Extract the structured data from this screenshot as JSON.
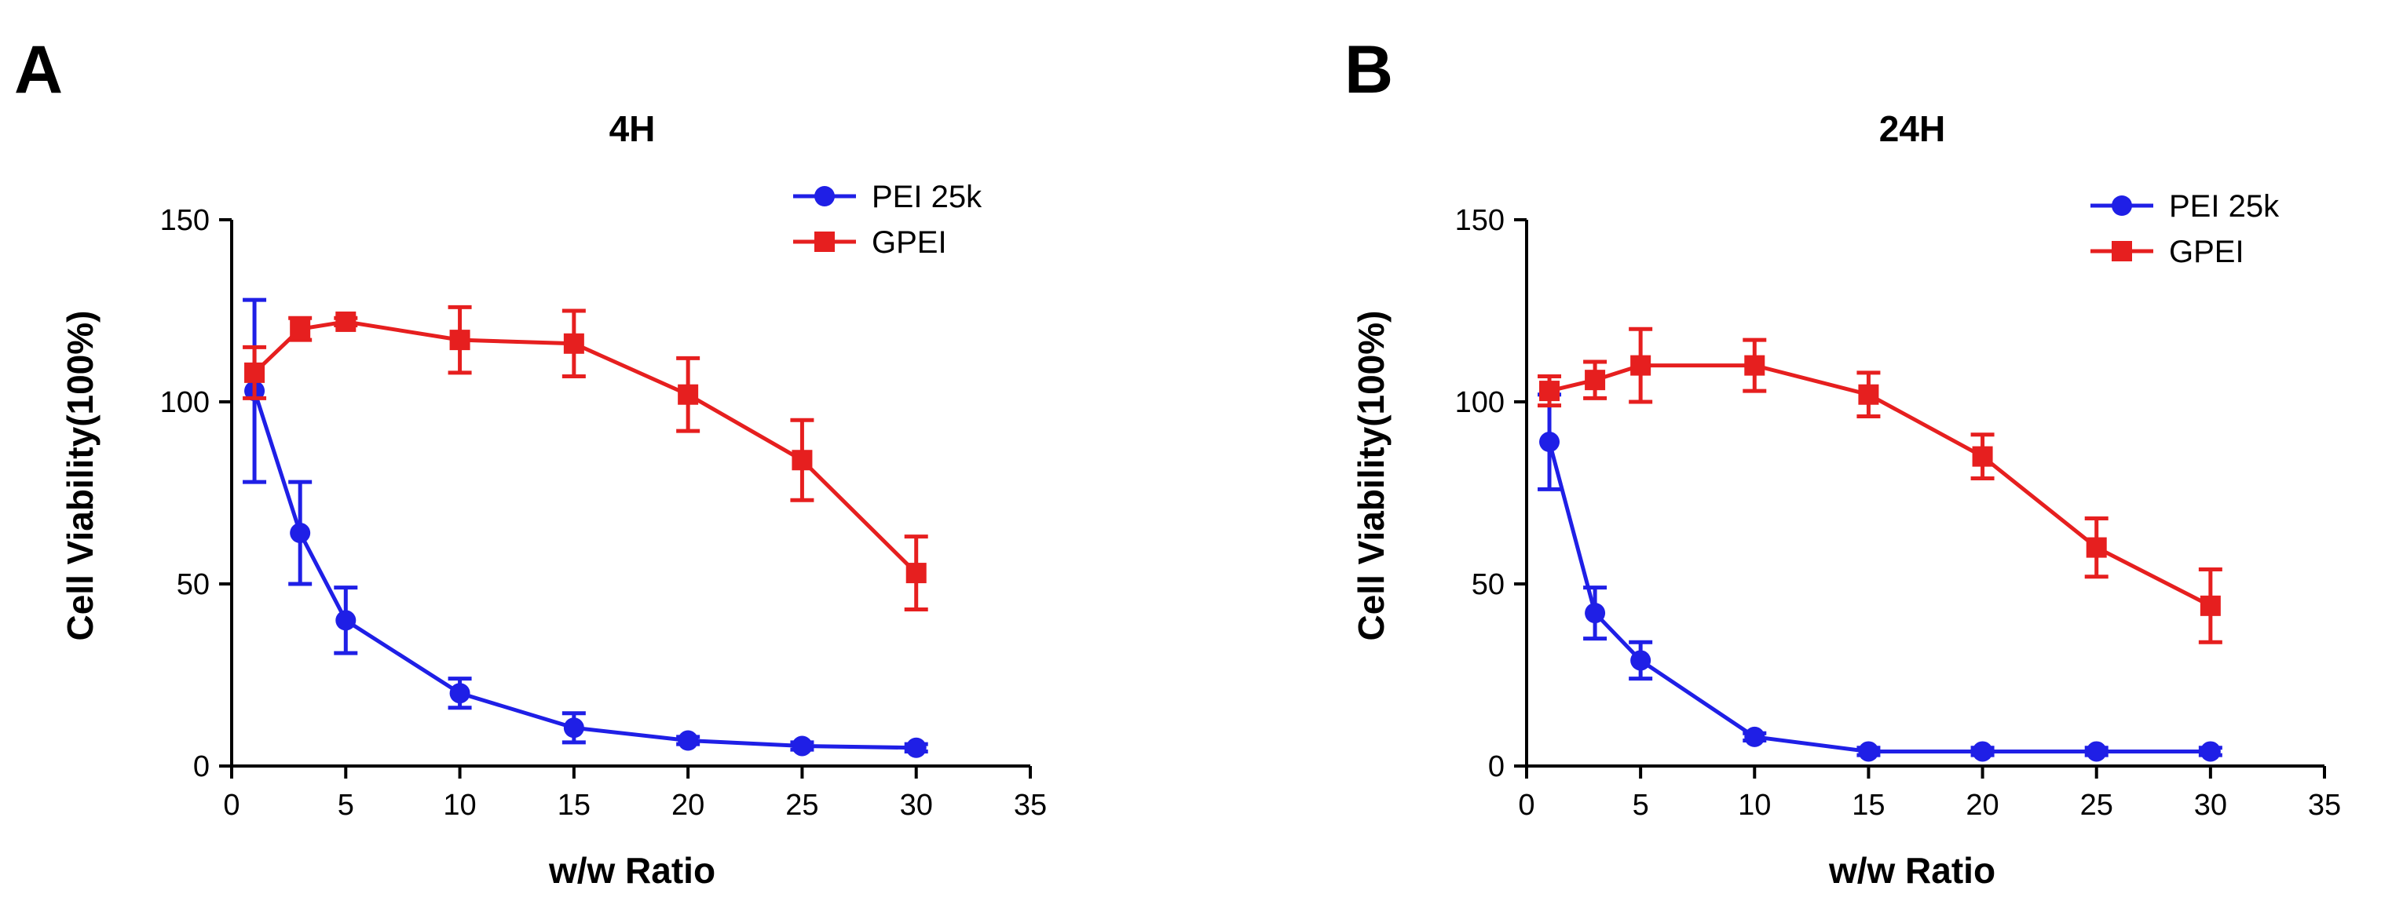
{
  "chart_data": [
    {
      "panel": "A",
      "type": "line",
      "title": "4H",
      "xlabel": "w/w Ratio",
      "ylabel": "Cell Viability(100%)",
      "xlim": [
        0,
        35
      ],
      "ylim": [
        0,
        150
      ],
      "xticks": [
        0,
        5,
        10,
        15,
        20,
        25,
        30,
        35
      ],
      "yticks": [
        0,
        50,
        100,
        150
      ],
      "legend": "top-right",
      "series": [
        {
          "name": "PEI 25k",
          "color": "#1f1fe6",
          "marker": "circle",
          "x": [
            1,
            3,
            5,
            10,
            15,
            20,
            25,
            30
          ],
          "y": [
            103,
            64,
            40,
            20,
            10.5,
            7,
            5.5,
            5
          ],
          "err": [
            25,
            14,
            9,
            4,
            4,
            1,
            1,
            1
          ]
        },
        {
          "name": "GPEI",
          "color": "#e61f1f",
          "marker": "square",
          "x": [
            1,
            3,
            5,
            10,
            15,
            20,
            25,
            30
          ],
          "y": [
            108,
            120,
            122,
            117,
            116,
            102,
            84,
            53
          ],
          "err": [
            7,
            3,
            1,
            9,
            9,
            10,
            11,
            10
          ]
        }
      ]
    },
    {
      "panel": "B",
      "type": "line",
      "title": "24H",
      "xlabel": "w/w Ratio",
      "ylabel": "Cell Viability(100%)",
      "xlim": [
        0,
        35
      ],
      "ylim": [
        0,
        150
      ],
      "xticks": [
        0,
        5,
        10,
        15,
        20,
        25,
        30,
        35
      ],
      "yticks": [
        0,
        50,
        100,
        150
      ],
      "legend": "top-right",
      "series": [
        {
          "name": "PEI 25k",
          "color": "#1f1fe6",
          "marker": "circle",
          "x": [
            1,
            3,
            5,
            10,
            15,
            20,
            25,
            30
          ],
          "y": [
            89,
            42,
            29,
            8,
            4,
            4,
            4,
            4
          ],
          "err": [
            13,
            7,
            5,
            1,
            1,
            1,
            1,
            1
          ]
        },
        {
          "name": "GPEI",
          "color": "#e61f1f",
          "marker": "square",
          "x": [
            1,
            3,
            5,
            10,
            15,
            20,
            25,
            30
          ],
          "y": [
            103,
            106,
            110,
            110,
            102,
            85,
            60,
            44
          ],
          "err": [
            4,
            5,
            10,
            7,
            6,
            6,
            8,
            10
          ]
        }
      ]
    }
  ]
}
